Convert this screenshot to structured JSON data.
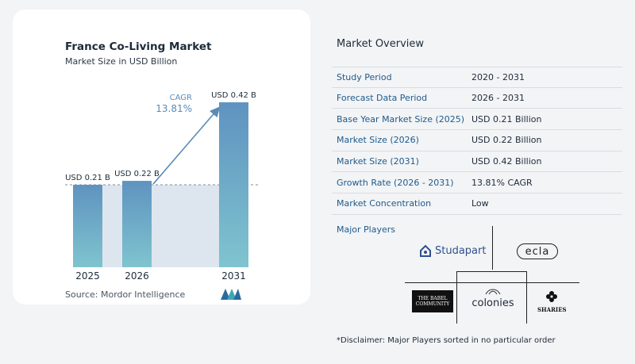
{
  "header": {
    "title": "France Co-Living Market",
    "subtitle": "Market Size in USD Billion"
  },
  "chart_data": {
    "type": "bar",
    "categories": [
      "2025",
      "2026",
      "2031"
    ],
    "values": [
      0.21,
      0.22,
      0.42
    ],
    "data_labels": [
      "USD 0.21 B",
      "USD 0.22 B",
      "USD 0.42 B"
    ],
    "ylim": [
      0,
      0.42
    ],
    "annotation": {
      "label": "CAGR",
      "value": "13.81%"
    },
    "colors": {
      "bar_top": "#5f93c0",
      "bar_bottom": "#7fc4cf",
      "band": "#dde6ef",
      "arrow": "#5a8bb8"
    }
  },
  "source": "Source:  Mordor Intelligence",
  "overview": {
    "title": "Market Overview",
    "rows": [
      {
        "label": "Study Period",
        "value": "2020 - 2031"
      },
      {
        "label": "Forecast Data Period",
        "value": "2026 - 2031"
      },
      {
        "label": "Base Year Market Size (2025)",
        "value": "USD 0.21 Billion"
      },
      {
        "label": "Market Size (2026)",
        "value": "USD 0.22 Billion"
      },
      {
        "label": "Market Size (2031)",
        "value": "USD 0.42 Billion"
      },
      {
        "label": "Growth Rate (2026 - 2031)",
        "value": "13.81% CAGR"
      },
      {
        "label": "Market Concentration",
        "value": "Low"
      }
    ]
  },
  "players": {
    "title": "Major Players",
    "names": [
      "Studapart",
      "ecla",
      "THE BABEL COMMUNITY",
      "colonies",
      "SHARIES"
    ]
  },
  "disclaimer": "*Disclaimer: Major Players sorted in no particular order"
}
